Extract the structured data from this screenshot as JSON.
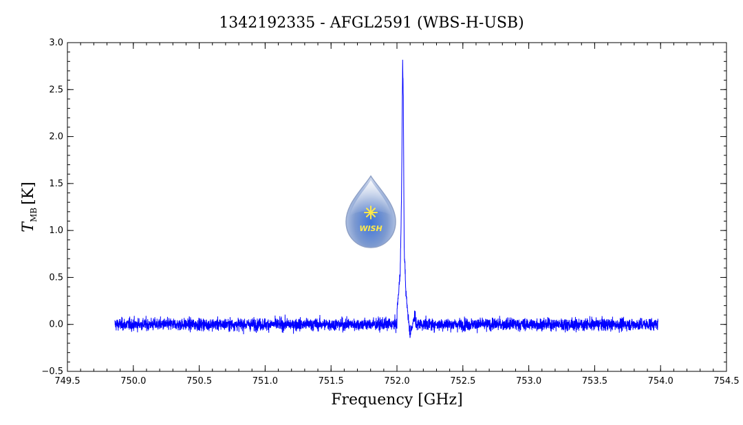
{
  "chart_data": {
    "type": "line",
    "title": "1342192335 - AFGL2591 (WBS-H-USB)",
    "xlabel": "Frequency [GHz]",
    "ylabel": {
      "symbol": "T",
      "subscript": "MB",
      "unit": "[K]"
    },
    "xlim": [
      749.5,
      754.5
    ],
    "ylim": [
      -0.5,
      3.0
    ],
    "xticks": [
      "749.5",
      "750.0",
      "750.5",
      "751.0",
      "751.5",
      "752.0",
      "752.5",
      "753.0",
      "753.5",
      "754.0",
      "754.5"
    ],
    "yticks": [
      "−0.5",
      "0.0",
      "0.5",
      "1.0",
      "1.5",
      "2.0",
      "2.5",
      "3.0"
    ],
    "grid": false,
    "series": [
      {
        "color": "#0000ff",
        "x_range": [
          749.86,
          753.98
        ],
        "baseline": 0.0,
        "noise_rms": 0.06,
        "features": [
          {
            "x": 752.0,
            "y": 0.15
          },
          {
            "x": 752.025,
            "y": 0.55
          },
          {
            "x": 752.035,
            "y": 1.4
          },
          {
            "x": 752.043,
            "y": 2.78
          },
          {
            "x": 752.048,
            "y": 2.45
          },
          {
            "x": 752.055,
            "y": 0.8
          },
          {
            "x": 752.07,
            "y": 0.28
          },
          {
            "x": 752.1,
            "y": -0.1
          },
          {
            "x": 752.14,
            "y": 0.12
          }
        ],
        "min_y": -0.27,
        "max_noise_spike_y": 0.23
      }
    ]
  },
  "logo": {
    "text": "WISH",
    "icon": "water-drop-star-icon"
  },
  "colors": {
    "line": "#0000ff",
    "axes": "#000000",
    "background": "#ffffff"
  }
}
